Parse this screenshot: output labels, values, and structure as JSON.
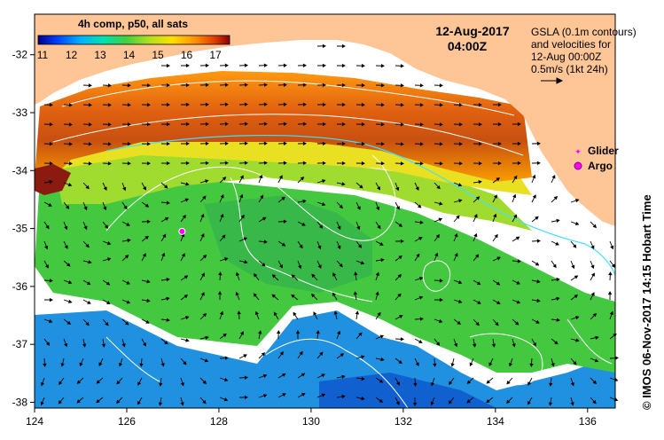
{
  "colorbar": {
    "title": "4h comp, p50, all sats",
    "ticks": [
      "11",
      "12",
      "13",
      "14",
      "15",
      "16",
      "17"
    ],
    "colors": [
      "#00008b",
      "#0040ff",
      "#00b0ff",
      "#00e0b0",
      "#40d040",
      "#b0e020",
      "#ffe000",
      "#ff9000",
      "#e04000",
      "#8b0000"
    ]
  },
  "datetime": {
    "date": "12-Aug-2017",
    "time": "04:00Z"
  },
  "legend_text": {
    "lines": [
      "GSLA (0.1m contours)",
      "and velocities for",
      "12-Aug 00:00Z",
      "0.5m/s (1kt 24h)"
    ]
  },
  "markers": {
    "glider_label": "Glider",
    "argo_label": "Argo",
    "glider_color": "#ff00ff",
    "argo_color": "#ff00ff"
  },
  "axes": {
    "x_ticks": [
      "124",
      "126",
      "128",
      "130",
      "132",
      "134",
      "136"
    ],
    "y_ticks": [
      "-32",
      "-33",
      "-34",
      "-35",
      "-36",
      "-37",
      "-38"
    ]
  },
  "credit": "©  IMOS 06-Nov-2017 14:15 Hobart Time",
  "colors": {
    "land": "#fec596",
    "no_data": "#ffffff",
    "contour": "#ffffff",
    "current_contour": "#40e0ff"
  },
  "map_data": {
    "lon_range": [
      124,
      136.6
    ],
    "lat_range": [
      -38.1,
      -31.3
    ],
    "argo_position": {
      "lon": 127.2,
      "lat": -35.05
    }
  }
}
